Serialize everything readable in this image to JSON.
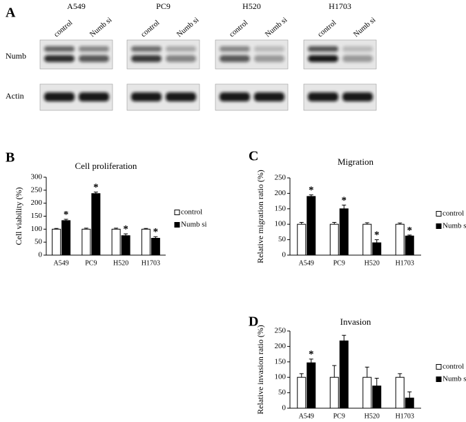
{
  "blot": {
    "panel_label": "A",
    "rows": [
      "Numb",
      "Actin"
    ],
    "cell_lines": [
      {
        "name": "A549",
        "lanes": [
          "control",
          "Numb si"
        ]
      },
      {
        "name": "PC9",
        "lanes": [
          "control",
          "Numb si"
        ]
      },
      {
        "name": "H520",
        "lanes": [
          "control",
          "Numb si"
        ]
      },
      {
        "name": "H1703",
        "lanes": [
          "control",
          "Numb si"
        ]
      }
    ]
  },
  "chart_data": [
    {
      "type": "bar",
      "panel_label": "B",
      "title": "Cell proliferation",
      "y_label": "Cell viability (%)",
      "categories": [
        "A549",
        "PC9",
        "H520",
        "H1703"
      ],
      "series": [
        {
          "name": "control",
          "color": "#ffffff",
          "edgecolor": "#000000",
          "values": [
            100,
            100,
            100,
            100
          ],
          "errors": [
            3,
            4,
            4,
            3
          ],
          "significance": [
            null,
            null,
            null,
            null
          ]
        },
        {
          "name": "Numb si",
          "color": "#000000",
          "edgecolor": "#000000",
          "values": [
            133,
            237,
            75,
            65
          ],
          "errors": [
            5,
            6,
            7,
            6
          ],
          "significance": [
            "*",
            "*",
            "*",
            "*"
          ]
        }
      ],
      "ylim": [
        0,
        300
      ],
      "yticks": [
        0,
        50,
        100,
        150,
        200,
        250,
        300
      ],
      "legend": "right"
    },
    {
      "type": "bar",
      "panel_label": "C",
      "title": "Migration",
      "y_label": "Relative migration ratio (%)",
      "categories": [
        "A549",
        "PC9",
        "H520",
        "H1703"
      ],
      "series": [
        {
          "name": "control",
          "color": "#ffffff",
          "edgecolor": "#000000",
          "values": [
            100,
            100,
            100,
            100
          ],
          "errors": [
            6,
            6,
            5,
            4
          ],
          "significance": [
            null,
            null,
            null,
            null
          ]
        },
        {
          "name": "Numb si",
          "color": "#000000",
          "edgecolor": "#000000",
          "values": [
            190,
            150,
            40,
            62
          ],
          "errors": [
            5,
            12,
            10,
            3
          ],
          "significance": [
            "*",
            "*",
            "*",
            "*"
          ]
        }
      ],
      "ylim": [
        0,
        250
      ],
      "yticks": [
        0,
        50,
        100,
        150,
        200,
        250
      ],
      "legend": "right"
    },
    {
      "type": "bar",
      "panel_label": "D",
      "title": "Invasion",
      "y_label": "Relative invasion ratio (%)",
      "categories": [
        "A549",
        "PC9",
        "H520",
        "H1703"
      ],
      "series": [
        {
          "name": "control",
          "color": "#ffffff",
          "edgecolor": "#000000",
          "values": [
            100,
            100,
            100,
            100
          ],
          "errors": [
            12,
            38,
            33,
            12
          ],
          "significance": [
            null,
            null,
            null,
            null
          ]
        },
        {
          "name": "Numb si",
          "color": "#000000",
          "edgecolor": "#000000",
          "values": [
            147,
            218,
            72,
            33
          ],
          "errors": [
            12,
            18,
            25,
            20
          ],
          "significance": [
            "*",
            null,
            null,
            null
          ]
        }
      ],
      "ylim": [
        0,
        250
      ],
      "yticks": [
        0,
        50,
        100,
        150,
        200,
        250
      ],
      "legend": "right"
    }
  ]
}
